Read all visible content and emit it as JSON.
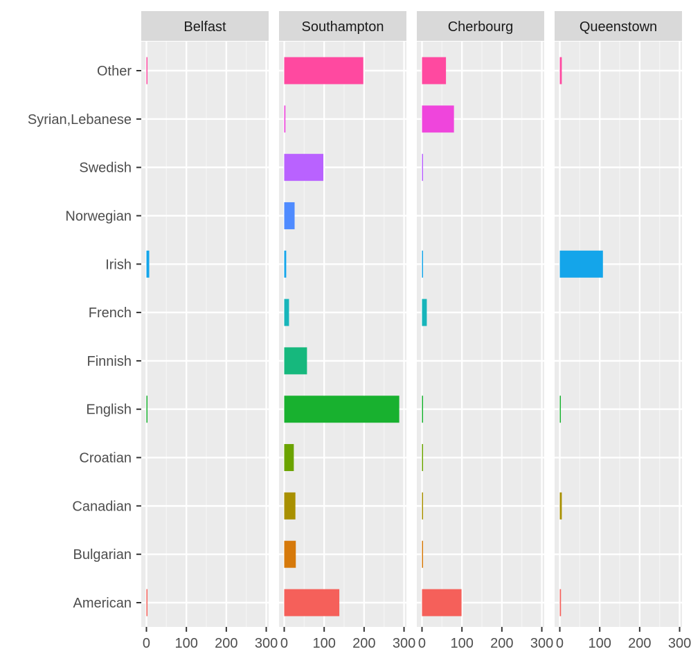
{
  "chart_data": {
    "type": "bar",
    "orientation": "horizontal",
    "facets": [
      "Belfast",
      "Southampton",
      "Cherbourg",
      "Queenstown"
    ],
    "categories": [
      "American",
      "Bulgarian",
      "Canadian",
      "Croatian",
      "English",
      "Finnish",
      "French",
      "Irish",
      "Norwegian",
      "Swedish",
      "Syrian,Lebanese",
      "Other"
    ],
    "colors": [
      "#F5605A",
      "#D6790A",
      "#A89000",
      "#6BA300",
      "#18B12F",
      "#16B87D",
      "#17B5BA",
      "#14A5EA",
      "#4F8BFF",
      "#B962FF",
      "#EF45DC",
      "#FF49A0"
    ],
    "values": {
      "Belfast": [
        1,
        0,
        0,
        0,
        1,
        0,
        0,
        7,
        0,
        0,
        0,
        1
      ],
      "Southampton": [
        138,
        29,
        28,
        24,
        288,
        57,
        12,
        5,
        26,
        98,
        3,
        198
      ],
      "Cherbourg": [
        99,
        1,
        2,
        1,
        2,
        0,
        12,
        1,
        0,
        1,
        80,
        60
      ],
      "Queenstown": [
        3,
        0,
        5,
        0,
        1,
        0,
        0,
        108,
        0,
        0,
        0,
        5
      ]
    },
    "x_ticks": [
      "0",
      "100",
      "200",
      "300"
    ],
    "xlim": [
      -13,
      306
    ],
    "xlabel": "",
    "ylabel": "",
    "grid": true,
    "legend": "none"
  }
}
